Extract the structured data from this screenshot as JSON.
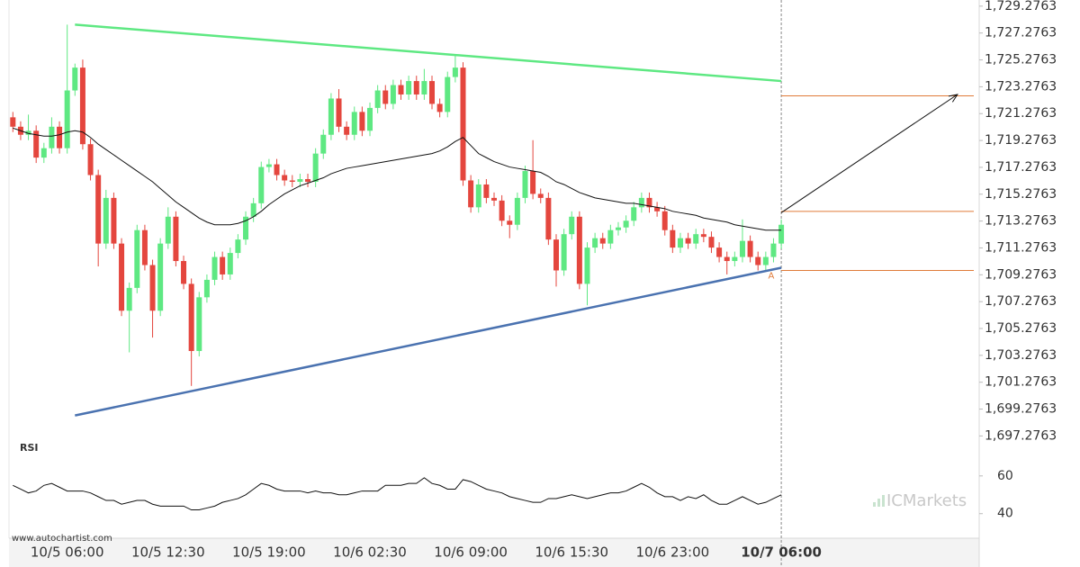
{
  "chart_data": {
    "type": "candlestick",
    "categories": [
      null,
      null,
      null,
      null,
      null,
      null,
      null,
      "10/5 06:00",
      null,
      null,
      null,
      null,
      null,
      null,
      null,
      null,
      null,
      null,
      null,
      null,
      "10/5 12:30",
      null,
      null,
      null,
      null,
      null,
      null,
      null,
      null,
      null,
      null,
      null,
      null,
      "10/5 19:00",
      null,
      null,
      null,
      null,
      null,
      null,
      null,
      null,
      null,
      null,
      null,
      null,
      "10/6 02:30",
      null,
      null,
      null,
      null,
      null,
      null,
      null,
      null,
      null,
      null,
      null,
      null,
      "10/6 09:00",
      null,
      null,
      null,
      null,
      null,
      null,
      null,
      null,
      null,
      null,
      null,
      null,
      "10/6 15:30",
      null,
      null,
      null,
      null,
      null,
      null,
      null,
      null,
      null,
      null,
      null,
      null,
      "10/6 23:00",
      null,
      null,
      null,
      null,
      null,
      null,
      null,
      null,
      null,
      null,
      null,
      null,
      null,
      "10/7 06:00"
    ],
    "open": [
      1721.0,
      1720.3,
      1719.7,
      1720.0,
      1718.0,
      1718.7,
      1720.3,
      1718.7,
      1723.0,
      1724.7,
      1719.0,
      1716.7,
      1711.6,
      1715.0,
      1711.6,
      1706.6,
      1708.3,
      1712.6,
      1710.0,
      1706.6,
      1711.6,
      1713.6,
      1710.3,
      1708.6,
      1703.6,
      1707.6,
      1708.9,
      1710.6,
      1709.3,
      1710.9,
      1711.9,
      1713.6,
      1714.6,
      1717.3,
      1717.5,
      1716.7,
      1716.3,
      1716.2,
      1716.4,
      1716.2,
      1718.3,
      1719.7,
      1722.4,
      1720.3,
      1719.7,
      1721.4,
      1720.0,
      1721.7,
      1723.0,
      1722.0,
      1723.4,
      1722.7,
      1723.7,
      1722.7,
      1723.7,
      1722.0,
      1721.4,
      1724.0,
      1724.7,
      1716.3,
      1714.3,
      1716.0,
      1715.0,
      1714.8,
      1713.3,
      1713.0,
      1715.0,
      1717.0,
      1715.3,
      1715.0,
      1711.9,
      1709.6,
      1712.3,
      1713.6,
      1708.6,
      1711.3,
      1712.0,
      1711.6,
      1712.6,
      1712.8,
      1713.3,
      1714.3,
      1715.0,
      1714.3,
      1714.0,
      1712.6,
      1711.3,
      1712.0,
      1711.6,
      1712.3,
      1712.1,
      1711.3,
      1710.6,
      1710.3,
      1710.6,
      1711.8,
      1710.6,
      1710.0,
      1710.6,
      1711.6
    ],
    "high": [
      1721.4,
      1720.7,
      1721.2,
      1720.4,
      1719.1,
      1721.0,
      1720.7,
      1727.9,
      1725.0,
      1725.3,
      1719.4,
      1717.1,
      1715.6,
      1715.4,
      1712.0,
      1708.7,
      1713.0,
      1713.0,
      1710.4,
      1712.0,
      1714.3,
      1714.0,
      1710.7,
      1709.0,
      1708.0,
      1709.3,
      1711.0,
      1711.0,
      1711.3,
      1712.3,
      1714.0,
      1715.0,
      1717.7,
      1717.9,
      1717.9,
      1717.1,
      1716.7,
      1716.8,
      1716.8,
      1718.7,
      1720.1,
      1722.8,
      1723.1,
      1720.7,
      1721.8,
      1721.8,
      1722.1,
      1723.4,
      1723.4,
      1723.8,
      1723.8,
      1724.1,
      1724.1,
      1724.6,
      1724.1,
      1722.4,
      1724.4,
      1725.6,
      1725.1,
      1716.7,
      1716.4,
      1716.4,
      1715.4,
      1715.2,
      1713.7,
      1715.4,
      1717.4,
      1719.3,
      1715.7,
      1715.4,
      1712.3,
      1712.7,
      1714.0,
      1714.0,
      1711.7,
      1712.4,
      1712.4,
      1713.0,
      1713.2,
      1713.7,
      1714.7,
      1715.4,
      1715.4,
      1714.7,
      1714.4,
      1713.0,
      1712.4,
      1712.4,
      1712.7,
      1712.7,
      1712.5,
      1711.7,
      1711.0,
      1711.0,
      1713.4,
      1712.2,
      1711.0,
      1711.0,
      1712.0,
      1713.4
    ],
    "low": [
      1719.9,
      1719.3,
      1719.3,
      1717.6,
      1717.6,
      1718.3,
      1718.3,
      1718.3,
      1722.6,
      1718.6,
      1716.3,
      1709.9,
      1711.2,
      1711.2,
      1706.2,
      1703.5,
      1707.9,
      1709.6,
      1704.6,
      1706.2,
      1711.2,
      1709.9,
      1708.2,
      1701.0,
      1703.2,
      1707.2,
      1708.5,
      1708.9,
      1708.9,
      1710.5,
      1711.5,
      1713.2,
      1714.2,
      1716.9,
      1716.3,
      1715.9,
      1715.8,
      1715.8,
      1715.8,
      1715.8,
      1717.9,
      1719.3,
      1719.9,
      1719.3,
      1719.3,
      1719.6,
      1719.6,
      1721.3,
      1721.6,
      1721.6,
      1722.3,
      1722.3,
      1722.3,
      1722.3,
      1721.6,
      1721.0,
      1721.0,
      1723.6,
      1715.9,
      1713.9,
      1713.9,
      1714.6,
      1714.4,
      1712.9,
      1712.0,
      1712.6,
      1714.6,
      1714.9,
      1714.6,
      1711.5,
      1708.4,
      1709.2,
      1711.9,
      1708.2,
      1707.0,
      1710.9,
      1711.2,
      1711.2,
      1712.2,
      1712.4,
      1712.9,
      1713.9,
      1713.9,
      1713.6,
      1712.2,
      1710.9,
      1710.9,
      1711.2,
      1711.2,
      1711.7,
      1710.9,
      1710.2,
      1709.3,
      1709.9,
      1710.2,
      1710.2,
      1709.6,
      1709.6,
      1710.2,
      1711.2
    ],
    "close": [
      1720.3,
      1719.7,
      1720.0,
      1718.0,
      1718.7,
      1720.3,
      1718.7,
      1723.0,
      1724.7,
      1719.0,
      1716.7,
      1711.6,
      1715.0,
      1711.6,
      1706.6,
      1708.3,
      1712.6,
      1710.0,
      1706.6,
      1711.6,
      1713.6,
      1710.3,
      1708.6,
      1703.6,
      1707.6,
      1708.9,
      1710.6,
      1709.3,
      1710.9,
      1711.9,
      1713.6,
      1714.6,
      1717.3,
      1717.5,
      1716.7,
      1716.3,
      1716.2,
      1716.4,
      1716.2,
      1718.3,
      1719.7,
      1722.4,
      1720.3,
      1719.7,
      1721.4,
      1720.0,
      1721.7,
      1723.0,
      1722.0,
      1723.4,
      1722.7,
      1723.7,
      1722.7,
      1723.7,
      1722.0,
      1721.4,
      1724.0,
      1724.7,
      1716.3,
      1714.3,
      1716.0,
      1715.0,
      1714.8,
      1713.3,
      1713.0,
      1715.0,
      1717.0,
      1715.3,
      1715.0,
      1711.9,
      1709.6,
      1712.3,
      1713.6,
      1708.6,
      1711.3,
      1712.0,
      1711.6,
      1712.6,
      1712.8,
      1713.3,
      1714.3,
      1715.0,
      1714.3,
      1714.0,
      1712.6,
      1711.3,
      1712.0,
      1711.6,
      1712.3,
      1712.1,
      1711.3,
      1710.6,
      1710.3,
      1710.6,
      1711.8,
      1710.6,
      1710.0,
      1710.6,
      1711.6,
      1713.0
    ],
    "up_color": "#5ee882",
    "down_color": "#e4463e",
    "moving_average": {
      "color": "#111111",
      "values": [
        1720.2,
        1720.0,
        1719.8,
        1719.7,
        1719.6,
        1719.6,
        1719.7,
        1719.9,
        1720.0,
        1719.9,
        1719.5,
        1719.0,
        1718.6,
        1718.2,
        1717.8,
        1717.4,
        1717.0,
        1716.6,
        1716.2,
        1715.7,
        1715.2,
        1714.7,
        1714.3,
        1713.9,
        1713.5,
        1713.2,
        1713.0,
        1713.0,
        1713.0,
        1713.1,
        1713.3,
        1713.6,
        1714.0,
        1714.5,
        1714.9,
        1715.3,
        1715.6,
        1715.9,
        1716.1,
        1716.3,
        1716.5,
        1716.8,
        1717.0,
        1717.2,
        1717.3,
        1717.4,
        1717.5,
        1717.6,
        1717.7,
        1717.8,
        1717.9,
        1718.0,
        1718.1,
        1718.2,
        1718.3,
        1718.5,
        1718.8,
        1719.2,
        1719.5,
        1718.9,
        1718.3,
        1718.0,
        1717.7,
        1717.5,
        1717.3,
        1717.2,
        1717.1,
        1717.0,
        1716.9,
        1716.6,
        1716.2,
        1716.0,
        1715.7,
        1715.4,
        1715.2,
        1715.0,
        1714.9,
        1714.8,
        1714.7,
        1714.6,
        1714.6,
        1714.5,
        1714.4,
        1714.3,
        1714.2,
        1714.0,
        1713.9,
        1713.8,
        1713.7,
        1713.5,
        1713.4,
        1713.3,
        1713.2,
        1713.0,
        1712.9,
        1712.8,
        1712.7,
        1712.6,
        1712.6,
        1712.6
      ]
    },
    "xlim": [
      -0.5,
      124.5
    ],
    "ylim": [
      1696.9,
      1729.4
    ],
    "yticks": [
      {
        "value": 1697.2763,
        "label": "1,697.2763"
      },
      {
        "value": 1699.2763,
        "label": "1,699.2763"
      },
      {
        "value": 1701.2763,
        "label": "1,701.2763"
      },
      {
        "value": 1703.2763,
        "label": "1,703.2763"
      },
      {
        "value": 1705.2763,
        "label": "1,705.2763"
      },
      {
        "value": 1707.2763,
        "label": "1,707.2763"
      },
      {
        "value": 1709.2763,
        "label": "1,709.2763"
      },
      {
        "value": 1711.2763,
        "label": "1,711.2763"
      },
      {
        "value": 1713.2763,
        "label": "1,713.2763"
      },
      {
        "value": 1715.2763,
        "label": "1,715.2763"
      },
      {
        "value": 1717.2763,
        "label": "1,717.2763"
      },
      {
        "value": 1719.2763,
        "label": "1,719.2763"
      },
      {
        "value": 1721.2763,
        "label": "1,721.2763"
      },
      {
        "value": 1723.2763,
        "label": "1,723.2763"
      },
      {
        "value": 1725.2763,
        "label": "1,725.2763"
      },
      {
        "value": 1727.2763,
        "label": "1,727.2763"
      },
      {
        "value": 1729.2763,
        "label": "1,729.2763"
      }
    ],
    "resistance": {
      "color": "#5ee882",
      "x": [
        8,
        99
      ],
      "y": [
        1727.9,
        1723.7
      ]
    },
    "support": {
      "color": "#4a72b0",
      "x": [
        8,
        99
      ],
      "y": [
        1698.8,
        1709.8
      ]
    },
    "levels": {
      "color": "#e07b39",
      "values": [
        1722.6,
        1714.0,
        1709.6
      ]
    },
    "forecast": {
      "color": "#111111",
      "x": [
        99,
        121.7
      ],
      "y": [
        1713.9,
        1722.7
      ]
    },
    "annotation": {
      "text": "A",
      "x": 97.7,
      "y": 1709.2,
      "color": "#e07b39"
    },
    "rsi": {
      "label": "RSI",
      "color": "#111111",
      "ylim": [
        27,
        78.5
      ],
      "yticks": [
        60,
        40
      ],
      "values": [
        55,
        53,
        51,
        52,
        55,
        56,
        54,
        52,
        52,
        52,
        51,
        49,
        47,
        47,
        45,
        46,
        47,
        47,
        45,
        44,
        44,
        44,
        44,
        42,
        42,
        43,
        44,
        46,
        47,
        48,
        50,
        53,
        56,
        55,
        53,
        52,
        52,
        52,
        51,
        52,
        51,
        51,
        50,
        50,
        51,
        52,
        52,
        52,
        55,
        55,
        55,
        56,
        56,
        59,
        56,
        55,
        53,
        53,
        58,
        57,
        55,
        53,
        52,
        51,
        49,
        48,
        47,
        46,
        46,
        48,
        48,
        49,
        50,
        49,
        48,
        49,
        50,
        51,
        51,
        52,
        54,
        56,
        54,
        51,
        49,
        49,
        47,
        49,
        48,
        50,
        47,
        45,
        45,
        47,
        49,
        47,
        45,
        46,
        48,
        50
      ]
    },
    "watermark": "ICMarkets",
    "source": "www.autochartist.com"
  }
}
